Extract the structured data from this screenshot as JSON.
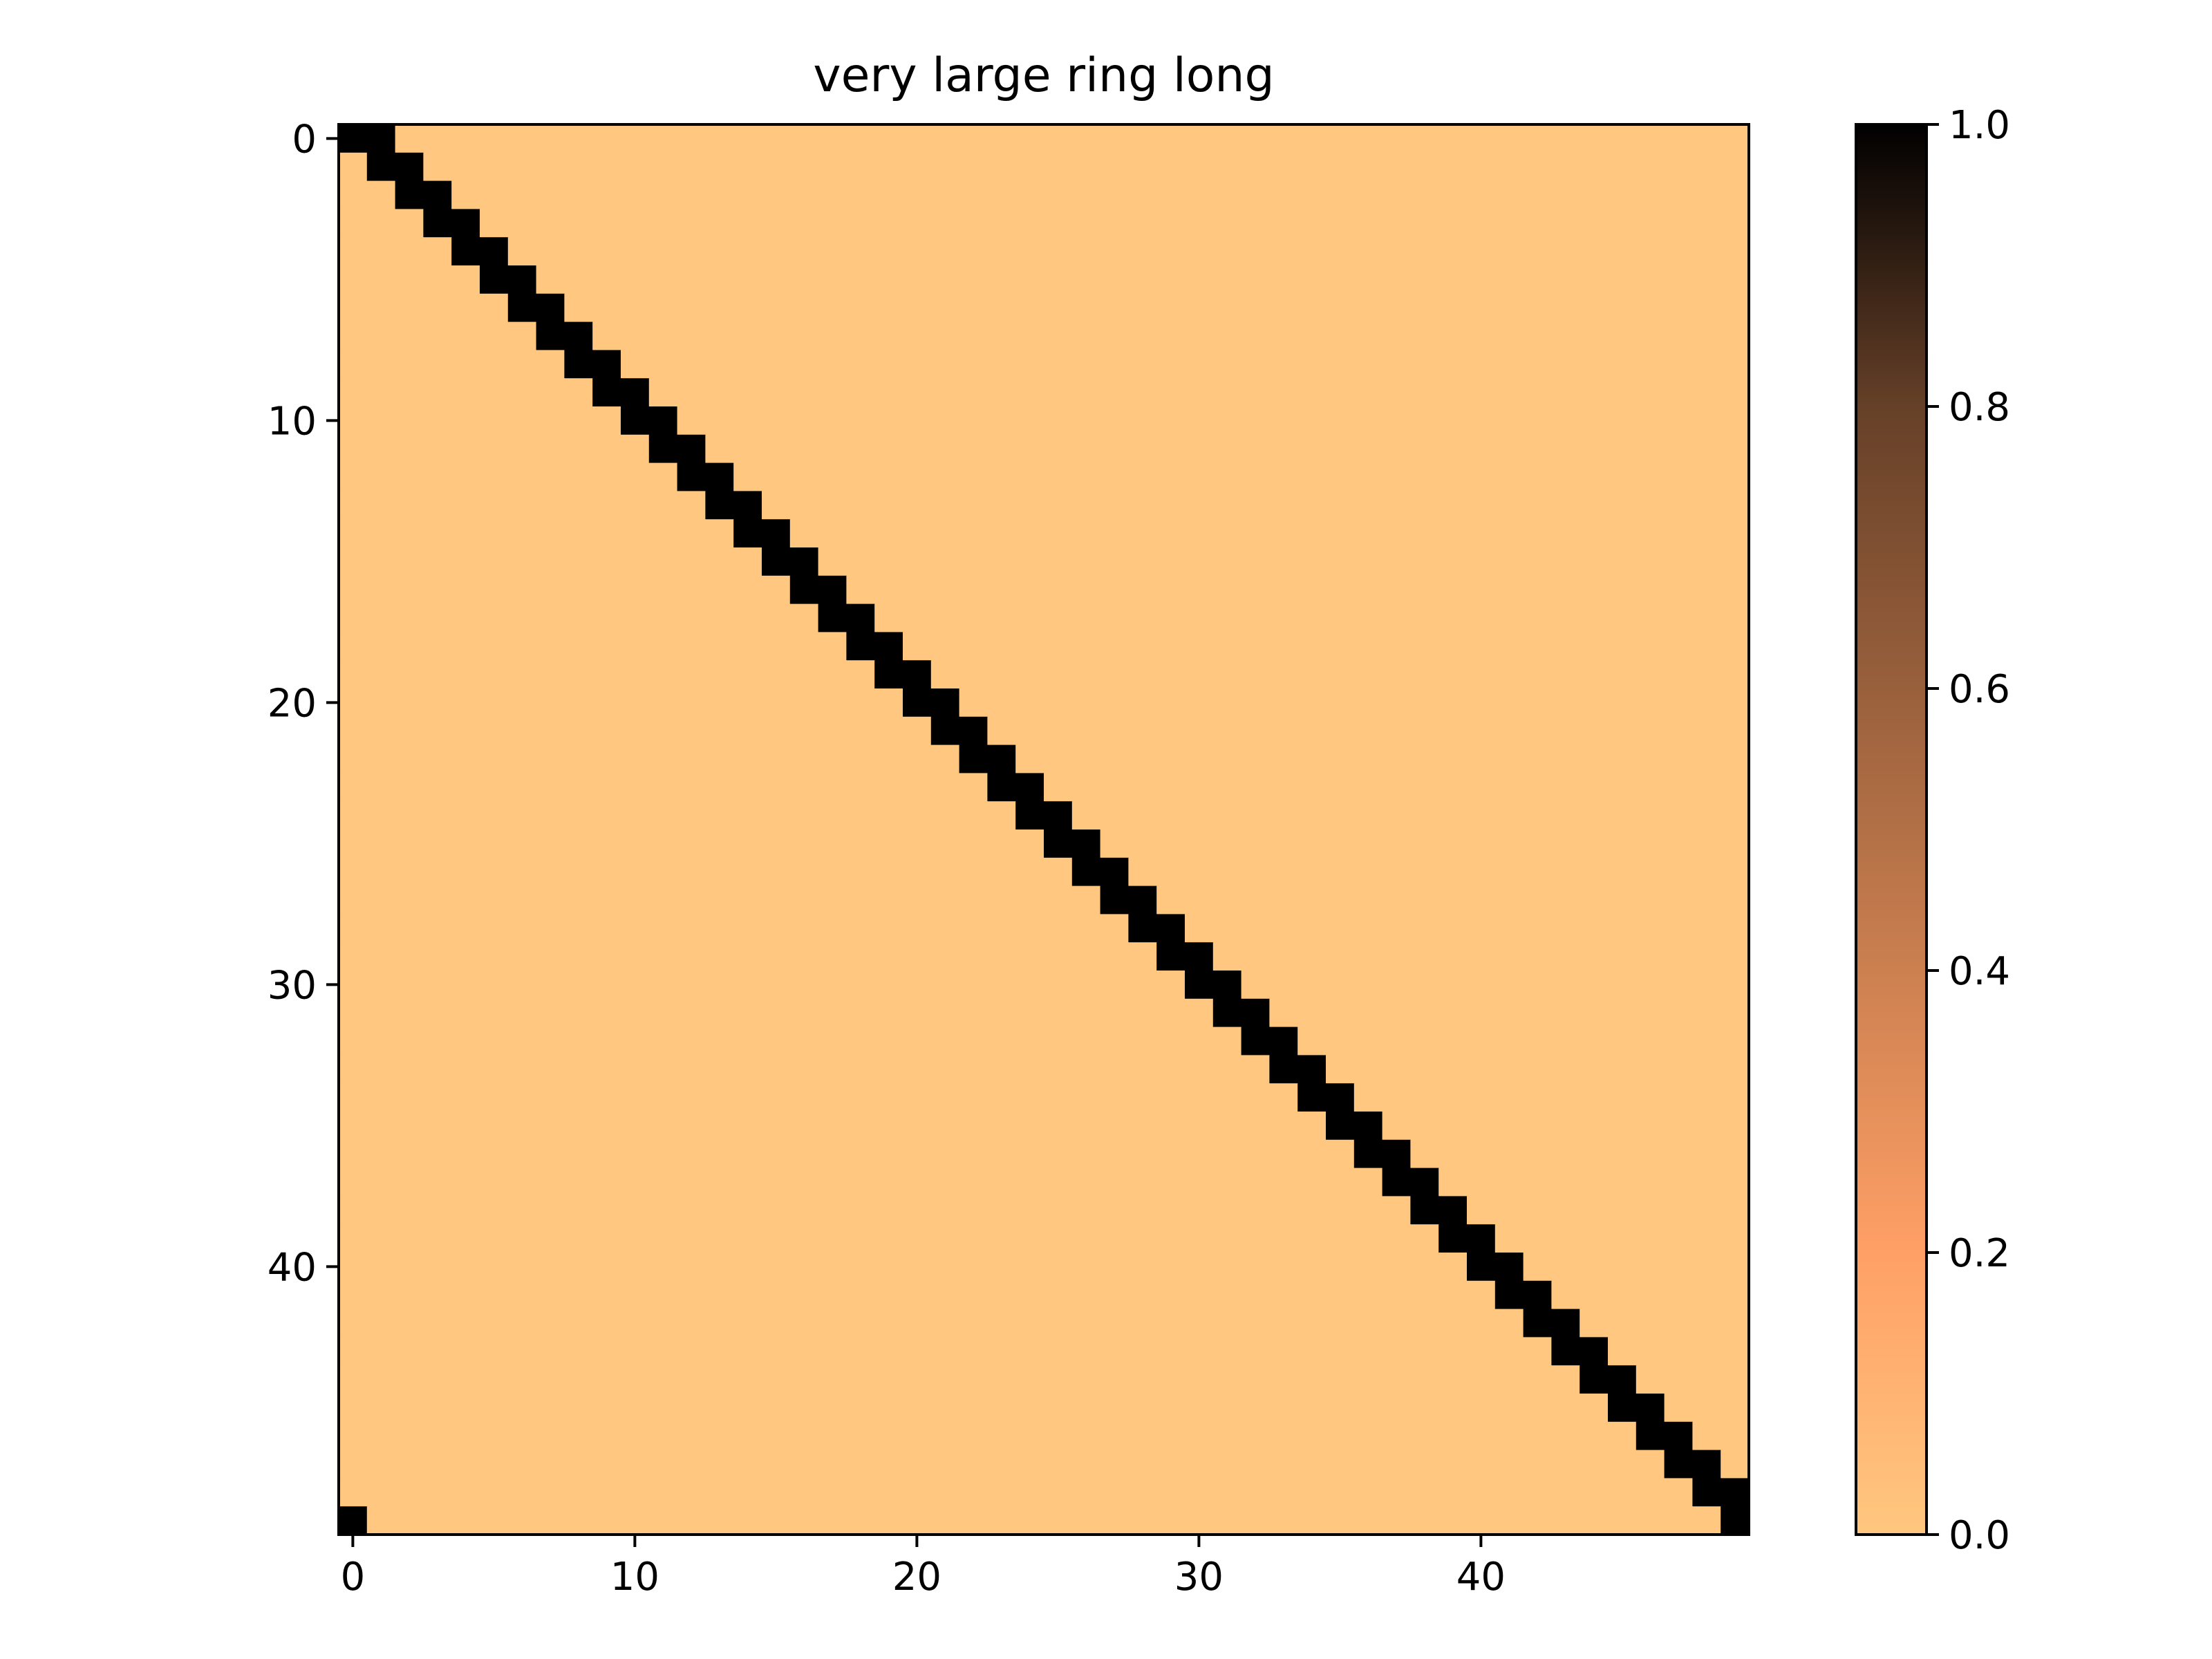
{
  "chart_data": {
    "type": "heatmap",
    "title": "very large ring long",
    "xlabel": "",
    "ylabel": "",
    "rows": 50,
    "cols": 50,
    "pattern": "ring adjacency (periodic band): cell (i,j) = 1 when (j - i) mod 50 is 0 or 1, else 0",
    "band_offsets": [
      0,
      1
    ],
    "value_on": 1.0,
    "value_off": 0.0,
    "colormap": "copper_r",
    "colors": {
      "low": "#ffc77f",
      "high": "#000000"
    },
    "x_ticks": [
      0,
      10,
      20,
      30,
      40
    ],
    "y_ticks": [
      0,
      10,
      20,
      30,
      40
    ],
    "colorbar": {
      "range": [
        0.0,
        1.0
      ],
      "ticks": [
        0.0,
        0.2,
        0.4,
        0.6,
        0.8,
        1.0
      ],
      "tick_labels": [
        "0.0",
        "0.2",
        "0.4",
        "0.6",
        "0.8",
        "1.0"
      ]
    },
    "grid": false
  }
}
